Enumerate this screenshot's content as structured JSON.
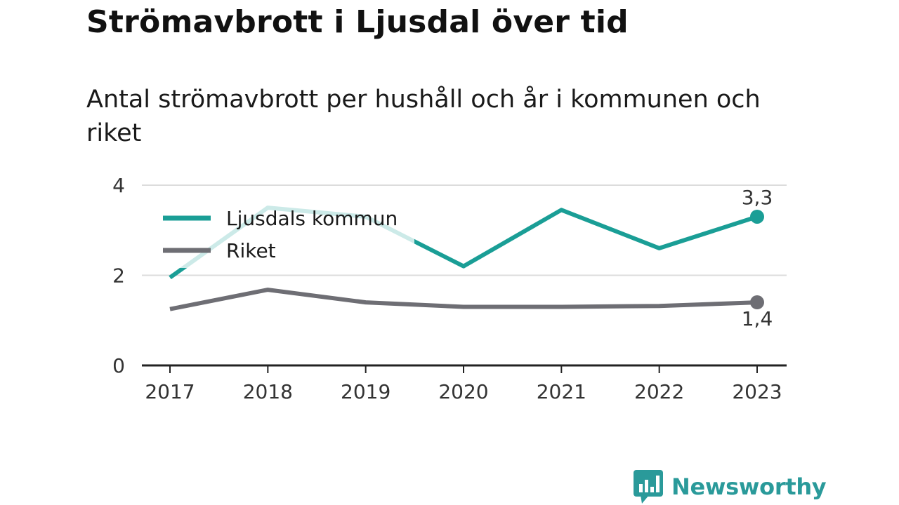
{
  "title": "Strömavbrott i Ljusdal över tid",
  "subtitle": "Antal strömavbrott per hushåll och år i kommunen och riket",
  "brand": {
    "name": "Newsworthy",
    "logo_icon": "bar-chart-speech-bubble-icon"
  },
  "chart_data": {
    "type": "line",
    "title": "",
    "xlabel": "",
    "ylabel": "",
    "x": [
      "2017",
      "2018",
      "2019",
      "2020",
      "2021",
      "2022",
      "2023"
    ],
    "ylim": [
      0,
      4
    ],
    "yticks": [
      "0",
      "2",
      "4"
    ],
    "grid": true,
    "legend_position": "top-left",
    "series": [
      {
        "name": "Ljusdals kommun",
        "color": "#1a9e96",
        "values": [
          1.95,
          3.5,
          3.3,
          2.2,
          3.45,
          2.6,
          3.3
        ],
        "end_label": "3,3"
      },
      {
        "name": "Riket",
        "color": "#6e6e74",
        "values": [
          1.25,
          1.68,
          1.4,
          1.3,
          1.3,
          1.32,
          1.4
        ],
        "end_label": "1,4"
      }
    ]
  }
}
